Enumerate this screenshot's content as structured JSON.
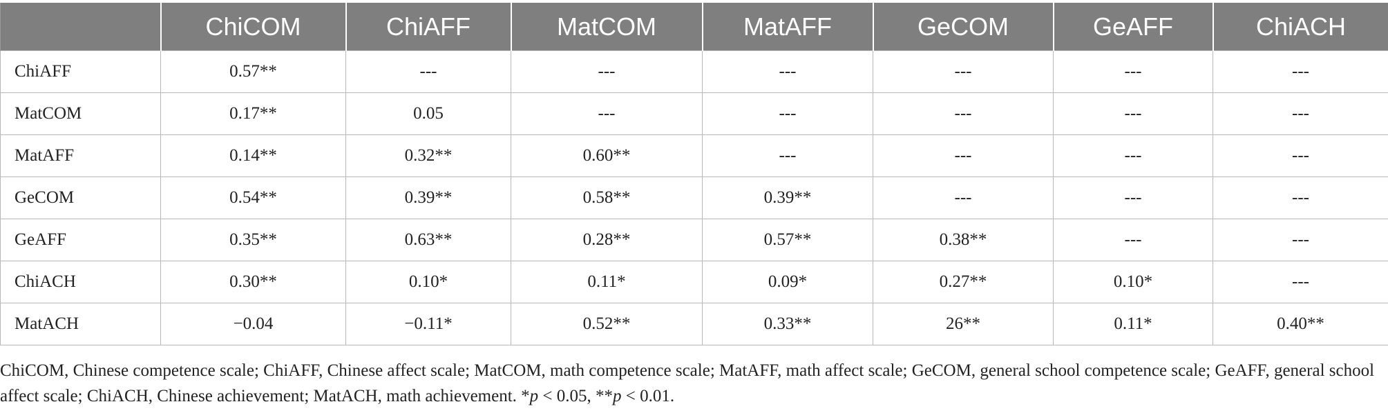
{
  "table": {
    "corner": "",
    "columns": [
      "ChiCOM",
      "ChiAFF",
      "MatCOM",
      "MatAFF",
      "GeCOM",
      "GeAFF",
      "ChiACH"
    ],
    "rows": [
      {
        "label": "ChiAFF",
        "cells": [
          "0.57**",
          "---",
          "---",
          "---",
          "---",
          "---",
          "---"
        ]
      },
      {
        "label": "MatCOM",
        "cells": [
          "0.17**",
          "0.05",
          "---",
          "---",
          "---",
          "---",
          "---"
        ]
      },
      {
        "label": "MatAFF",
        "cells": [
          "0.14**",
          "0.32**",
          "0.60**",
          "---",
          "---",
          "---",
          "---"
        ]
      },
      {
        "label": "GeCOM",
        "cells": [
          "0.54**",
          "0.39**",
          "0.58**",
          "0.39**",
          "---",
          "---",
          "---"
        ]
      },
      {
        "label": "GeAFF",
        "cells": [
          "0.35**",
          "0.63**",
          "0.28**",
          "0.57**",
          "0.38**",
          "---",
          "---"
        ]
      },
      {
        "label": "ChiACH",
        "cells": [
          "0.30**",
          "0.10*",
          "0.11*",
          "0.09*",
          "0.27**",
          "0.10*",
          "---"
        ]
      },
      {
        "label": "MatACH",
        "cells": [
          "−0.04",
          "−0.11*",
          "0.52**",
          "0.33**",
          "26**",
          "0.11*",
          "0.40**"
        ]
      }
    ]
  },
  "note": {
    "text": "ChiCOM, Chinese competence scale; ChiAFF, Chinese affect scale; MatCOM, math competence scale; MatAFF, math affect scale; GeCOM, general school competence scale; GeAFF, general school affect scale; ChiACH, Chinese achievement; MatACH, math achievement. *",
    "p1": "p",
    "mid": " < 0.05, **",
    "p2": "p",
    "end": " < 0.01."
  }
}
